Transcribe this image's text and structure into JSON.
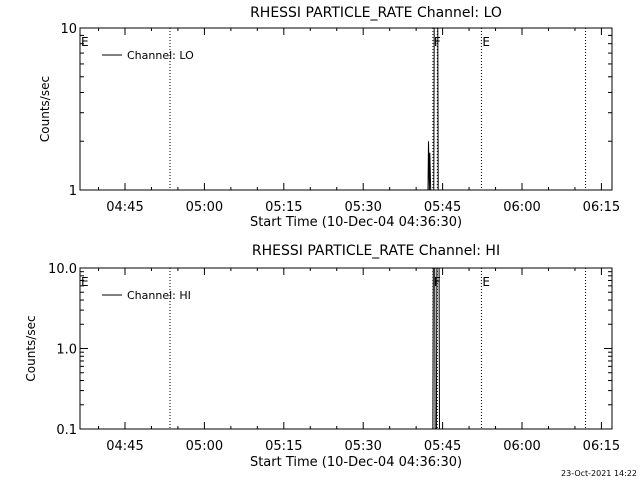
{
  "footer": {
    "timestamp": "23-Oct-2021 14:22"
  },
  "colors": {
    "background": "#ffffff",
    "ink": "#000000"
  },
  "chart_data": [
    {
      "type": "line",
      "title": "RHESSI PARTICLE_RATE Channel: LO",
      "xlabel": "Start Time (10-Dec-04 04:36:30)",
      "ylabel": "Counts/sec",
      "yscale": "log",
      "ylim": [
        1,
        10
      ],
      "xlim": [
        "04:36:30",
        "06:17:00"
      ],
      "yticks": [
        {
          "value": 1,
          "label": "1"
        },
        {
          "value": 10,
          "label": "10"
        }
      ],
      "xticks": [
        {
          "value": "04:45",
          "label": "04:45"
        },
        {
          "value": "05:00",
          "label": "05:00"
        },
        {
          "value": "05:15",
          "label": "05:15"
        },
        {
          "value": "05:30",
          "label": "05:30"
        },
        {
          "value": "05:45",
          "label": "05:45"
        },
        {
          "value": "06:00",
          "label": "06:00"
        },
        {
          "value": "06:15",
          "label": "06:15"
        }
      ],
      "legend": {
        "position": "top-left",
        "entries": [
          "Channel: LO"
        ]
      },
      "markers": [
        {
          "time": "04:36:30",
          "label": "E"
        },
        {
          "time": "04:53:30",
          "label": ""
        },
        {
          "time": "05:43:10",
          "label": "F"
        },
        {
          "time": "05:44:00",
          "label": ""
        },
        {
          "time": "05:52:20",
          "label": "E"
        },
        {
          "time": "06:12:00",
          "label": ""
        }
      ],
      "series": [
        {
          "name": "Channel: LO",
          "points": [
            {
              "x": "05:42:15",
              "y": 1
            },
            {
              "x": "05:42:20",
              "y": 2.0
            },
            {
              "x": "05:42:30",
              "y": 1
            },
            {
              "x": "05:42:35",
              "y": 1.7
            },
            {
              "x": "05:42:45",
              "y": 1
            },
            {
              "x": "05:43:20",
              "y": 1
            },
            {
              "x": "05:43:25",
              "y": 10
            },
            {
              "x": "05:44:05",
              "y": 10
            },
            {
              "x": "05:44:10",
              "y": 1
            }
          ]
        }
      ]
    },
    {
      "type": "line",
      "title": "RHESSI PARTICLE_RATE Channel: HI",
      "xlabel": "Start Time (10-Dec-04 04:36:30)",
      "ylabel": "Counts/sec",
      "yscale": "log",
      "ylim": [
        0.1,
        10
      ],
      "xlim": [
        "04:36:30",
        "06:17:00"
      ],
      "yticks": [
        {
          "value": 0.1,
          "label": "0.1"
        },
        {
          "value": 1,
          "label": "1.0"
        },
        {
          "value": 10,
          "label": "10.0"
        }
      ],
      "xticks": [
        {
          "value": "04:45",
          "label": "04:45"
        },
        {
          "value": "05:00",
          "label": "05:00"
        },
        {
          "value": "05:15",
          "label": "05:15"
        },
        {
          "value": "05:30",
          "label": "05:30"
        },
        {
          "value": "05:45",
          "label": "05:45"
        },
        {
          "value": "06:00",
          "label": "06:00"
        },
        {
          "value": "06:15",
          "label": "06:15"
        }
      ],
      "legend": {
        "position": "top-left",
        "entries": [
          "Channel: HI"
        ]
      },
      "markers": [
        {
          "time": "04:36:30",
          "label": "E"
        },
        {
          "time": "04:53:30",
          "label": ""
        },
        {
          "time": "05:43:10",
          "label": "F"
        },
        {
          "time": "05:44:00",
          "label": ""
        },
        {
          "time": "05:52:20",
          "label": "E"
        },
        {
          "time": "06:12:00",
          "label": ""
        }
      ],
      "series": [
        {
          "name": "Channel: HI",
          "points": [
            {
              "x": "05:43:10",
              "y": 0.1
            },
            {
              "x": "05:43:15",
              "y": 10
            },
            {
              "x": "05:43:30",
              "y": 10
            },
            {
              "x": "05:43:35",
              "y": 0.1
            },
            {
              "x": "05:43:50",
              "y": 0.1
            },
            {
              "x": "05:43:55",
              "y": 10
            },
            {
              "x": "05:44:20",
              "y": 10
            },
            {
              "x": "05:44:25",
              "y": 0.1
            }
          ]
        }
      ]
    }
  ]
}
